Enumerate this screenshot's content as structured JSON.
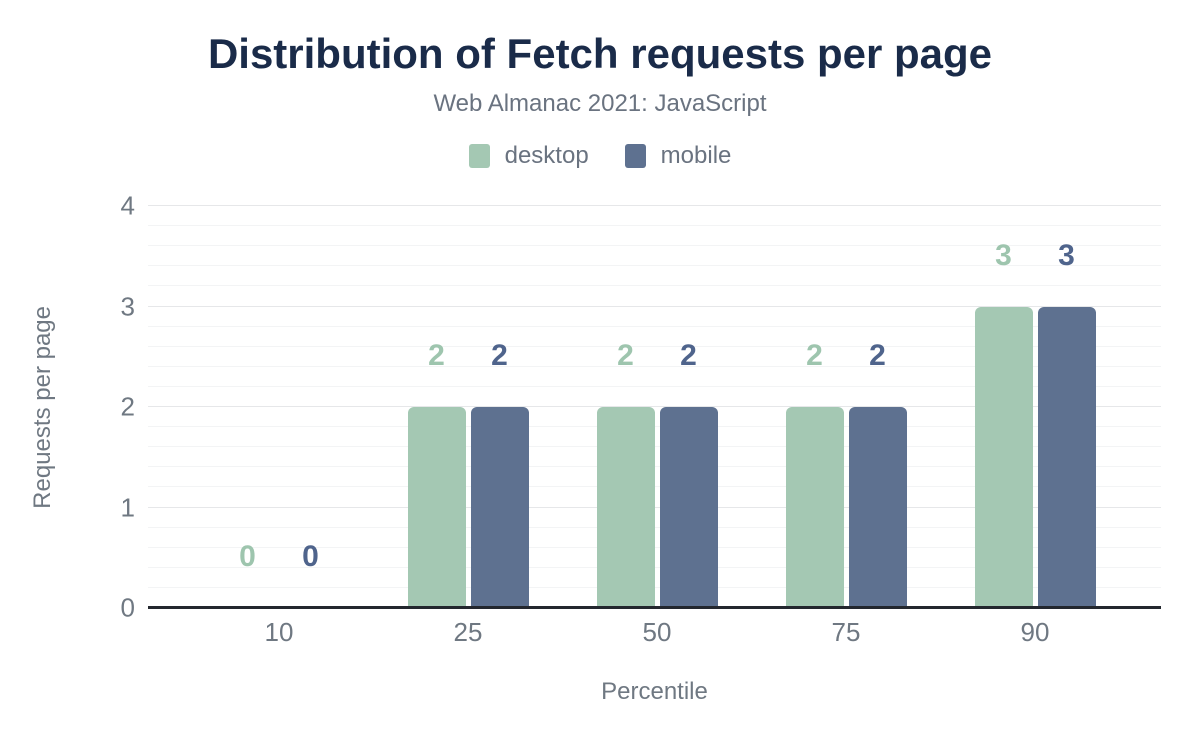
{
  "chart_data": {
    "type": "bar",
    "title": "Distribution of Fetch requests per page",
    "subtitle": "Web Almanac 2021: JavaScript",
    "categories": [
      "10",
      "25",
      "50",
      "75",
      "90"
    ],
    "series": [
      {
        "name": "desktop",
        "color": "#a4c8b3",
        "label_color": "#9ec5ae",
        "values": [
          0,
          2,
          2,
          2,
          3
        ]
      },
      {
        "name": "mobile",
        "color": "#5e7190",
        "label_color": "#4f648c",
        "values": [
          0,
          2,
          2,
          2,
          3
        ]
      }
    ],
    "xlabel": "Percentile",
    "ylabel": "Requests per page",
    "ylim": [
      0,
      4
    ],
    "yticks": [
      0,
      1,
      2,
      3,
      4
    ],
    "minor_gridline_step": 0.2,
    "grid": "on",
    "legend_position": "top"
  },
  "colors": {
    "background": "#ffffff",
    "title_text": "#1a2b49",
    "muted_text": "#6a7380",
    "axis_text": "#6f7882",
    "axis_line": "#23272e",
    "grid_major": "#e6e7e9",
    "grid_minor": "#f3f4f5"
  }
}
